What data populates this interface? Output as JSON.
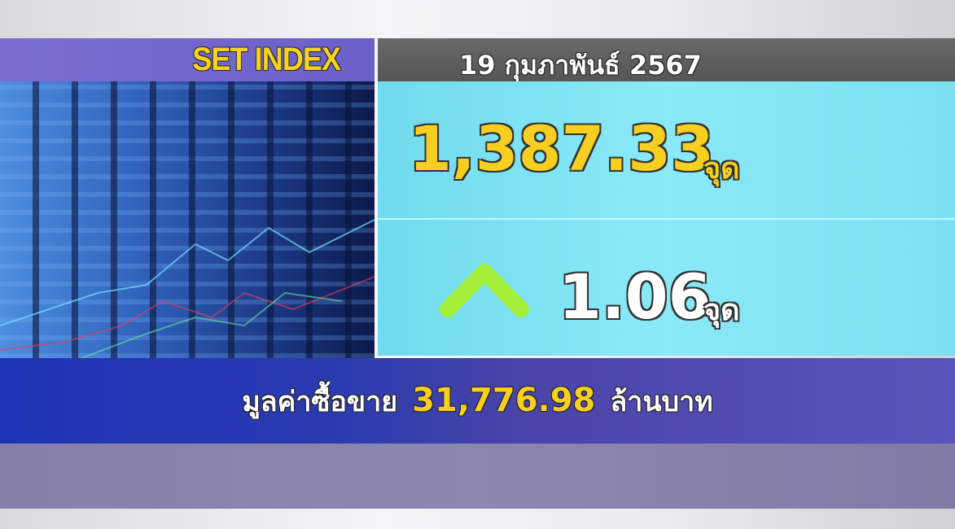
{
  "header": {
    "title": "SET INDEX",
    "date": "19 กุมภาพันธ์ 2567"
  },
  "index": {
    "value": "1,387.33",
    "unit": "จุด"
  },
  "change": {
    "value": "1.06",
    "unit": "จุด",
    "direction": "up",
    "arrow_icon": "chevron-up-icon",
    "arrow_color": "#a4ef3a"
  },
  "turnover": {
    "label": "มูลค่าซื้อขาย",
    "value": "31,776.98",
    "unit": "ล้านบาท"
  },
  "colors": {
    "accent_yellow": "#f7cf20",
    "header_purple": "#7a6fd0",
    "panel_cyan": "#8be9f8",
    "bar_blue": "#2a3bb0"
  }
}
